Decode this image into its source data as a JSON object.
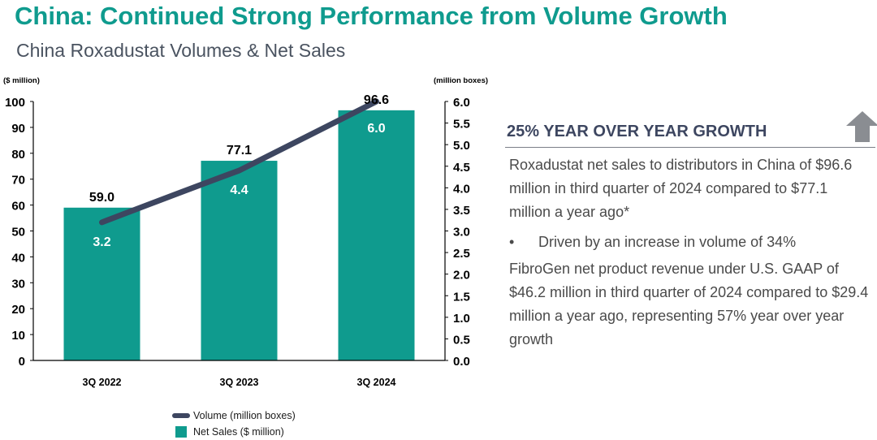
{
  "title": "China: Continued Strong Performance from Volume Growth",
  "subtitle": "China Roxadustat Volumes & Net Sales",
  "colors": {
    "accent": "#0f9b8e",
    "bar": "#0f9b8e",
    "line": "#3d4660",
    "text": "#4a4a4a"
  },
  "chart_data": {
    "type": "bar",
    "categories": [
      "3Q 2022",
      "3Q 2023",
      "3Q 2024"
    ],
    "series": [
      {
        "name": "Net Sales ($ million)",
        "type": "bar",
        "axis": "left",
        "values": [
          59.0,
          77.1,
          96.6
        ],
        "labels": [
          "59.0",
          "77.1",
          "96.6"
        ]
      },
      {
        "name": "Volume (million boxes)",
        "type": "line",
        "axis": "right",
        "values": [
          3.2,
          4.4,
          6.0
        ],
        "labels": [
          "3.2",
          "4.4",
          "6.0"
        ]
      }
    ],
    "left_axis": {
      "label": "($ million)",
      "min": 0,
      "max": 100,
      "ticks": [
        "0",
        "10",
        "20",
        "30",
        "40",
        "50",
        "60",
        "70",
        "80",
        "90",
        "100"
      ]
    },
    "right_axis": {
      "label": "(million boxes)",
      "min": 0,
      "max": 6.0,
      "ticks": [
        "0.0",
        "0.5",
        "1.0",
        "1.5",
        "2.0",
        "2.5",
        "3.0",
        "3.5",
        "4.0",
        "4.5",
        "5.0",
        "5.5",
        "6.0"
      ]
    },
    "legend": [
      "Volume (million boxes)",
      "Net Sales ($ million)"
    ]
  },
  "panel": {
    "heading": "25% YEAR OVER YEAR GROWTH",
    "arrow_icon": "up-arrow-icon",
    "paragraph1": "Roxadustat net sales to distributors in China of $96.6 million in third quarter of 2024 compared to $77.1 million a year ago*",
    "bullet_marker": "•",
    "bullet": "Driven by an increase in volume of 34%",
    "paragraph2": "FibroGen net product revenue under U.S. GAAP of $46.2 million in third quarter of 2024 compared to $29.4 million a year ago, representing 57% year over year growth"
  }
}
